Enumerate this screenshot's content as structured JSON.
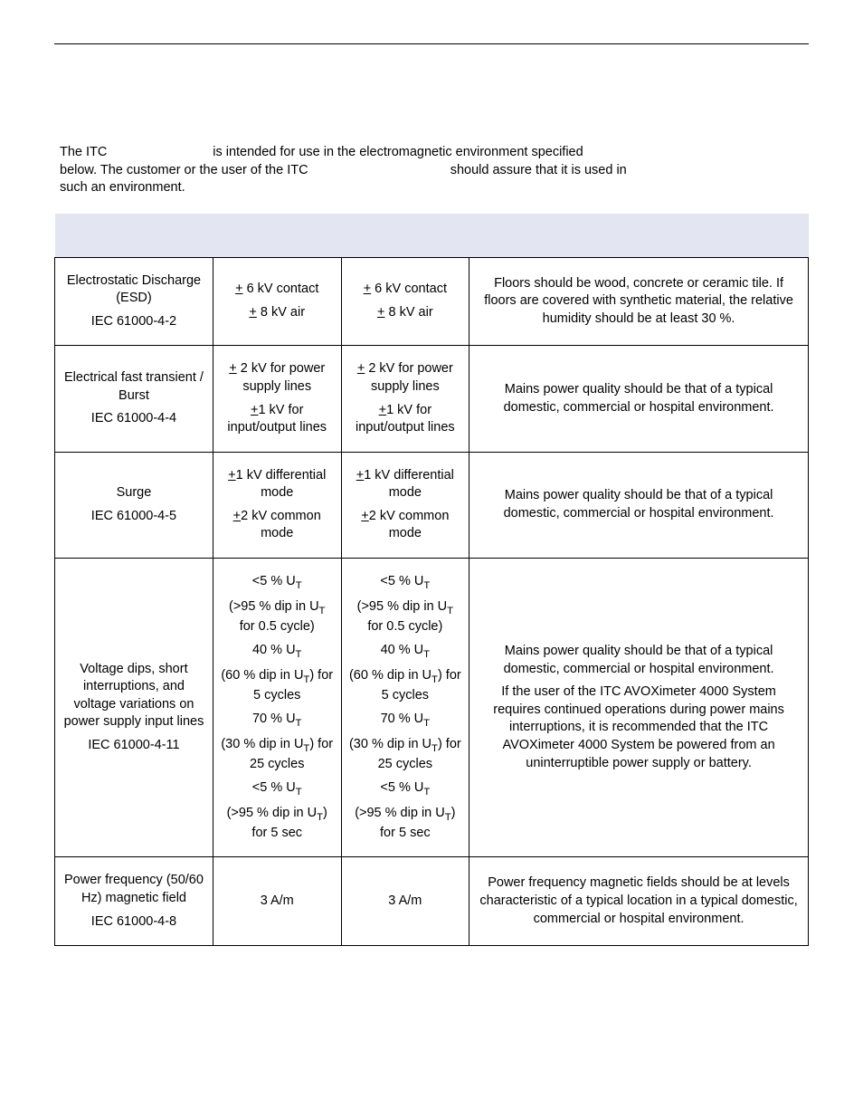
{
  "intro": {
    "line1a": "The ITC ",
    "line1b": " is intended for use in the electromagnetic environment specified",
    "line2a": "below.  The customer or the user of the ITC ",
    "line2b": " should assure that it is used in",
    "line3": "such an environment."
  },
  "rows": [
    {
      "test": [
        "Electrostatic Discharge (ESD)",
        "IEC 61000-4-2"
      ],
      "level1": [
        "± 6 kV contact",
        "± 8 kV air"
      ],
      "level2": [
        "± 6 kV contact",
        "± 8 kV air"
      ],
      "guidance": [
        "Floors should be wood, concrete or ceramic tile.  If floors are covered with synthetic material, the relative humidity should be at least 30 %."
      ]
    },
    {
      "test": [
        "Electrical fast transient / Burst",
        "IEC 61000-4-4"
      ],
      "level1": [
        "± 2 kV for power supply lines",
        "±1 kV for input/output lines"
      ],
      "level2": [
        "± 2 kV for power supply lines",
        "±1 kV for input/output lines"
      ],
      "guidance": [
        "Mains power quality should be that of a typical domestic, commercial or hospital environment."
      ]
    },
    {
      "test": [
        "Surge",
        "IEC 61000-4-5"
      ],
      "level1": [
        "±1 kV differential mode",
        "±2 kV common mode"
      ],
      "level2": [
        "±1 kV differential mode",
        "±2 kV common mode"
      ],
      "guidance": [
        "Mains power quality should be that of a typical domestic, commercial or hospital environment."
      ]
    },
    {
      "test": [
        "Voltage dips, short interruptions, and voltage variations on power supply input lines",
        " ",
        "IEC 61000-4-11"
      ],
      "level1": [
        "<5 % U{T}",
        "(>95 % dip in U{T} for 0.5 cycle)",
        "40 % U{T}",
        "(60 % dip in U{T}) for 5 cycles",
        "70 % U{T}",
        "(30 % dip in U{T}) for 25 cycles",
        "<5 % U{T}",
        "(>95 % dip in U{T}) for 5 sec"
      ],
      "level2": [
        "<5 % U{T}",
        "(>95 % dip in U{T} for 0.5 cycle)",
        "40 % U{T}",
        "(60 % dip in U{T}) for 5 cycles",
        "70 % U{T}",
        "(30 % dip in U{T}) for 25 cycles",
        "<5 % U{T}",
        "(>95 % dip in U{T}) for 5 sec"
      ],
      "guidance": [
        "Mains power quality should be that of a typical domestic, commercial or hospital environment.",
        "If the user of the ITC AVOXimeter 4000 System requires continued operations during power mains interruptions, it is recommended that the ITC AVOXimeter 4000 System be powered from an uninterruptible power supply or battery."
      ]
    },
    {
      "test": [
        "Power frequency (50/60 Hz) magnetic field",
        "IEC 61000-4-8"
      ],
      "level1": [
        "3 A/m"
      ],
      "level2": [
        "3 A/m"
      ],
      "guidance": [
        "Power frequency magnetic fields should be at levels characteristic of a typical location in a typical domestic, commercial or hospital environment."
      ]
    }
  ]
}
